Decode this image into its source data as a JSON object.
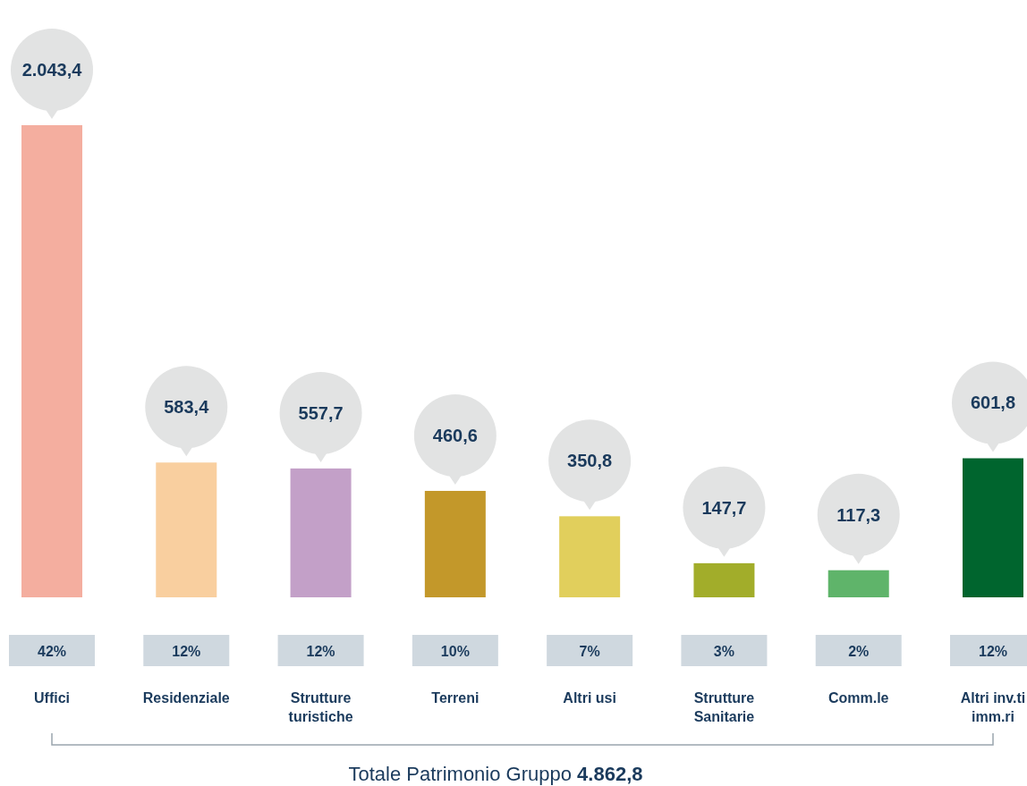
{
  "chart_data": {
    "type": "bar",
    "categories": [
      "Uffici",
      "Residenziale",
      "Strutture turistiche",
      "Terreni",
      "Altri usi",
      "Strutture Sanitarie",
      "Comm.le",
      "Altri inv.ti imm.ri"
    ],
    "values": [
      2043.4,
      583.4,
      557.7,
      460.6,
      350.8,
      147.7,
      117.3,
      601.8
    ],
    "value_labels": [
      "2.043,4",
      "583,4",
      "557,7",
      "460,6",
      "350,8",
      "147,7",
      "117,3",
      "601,8"
    ],
    "colors": [
      "#f4ae9f",
      "#f9cf9f",
      "#c3a0c8",
      "#c3982a",
      "#e1cf5c",
      "#a2ad2a",
      "#5fb46a",
      "#00652e"
    ],
    "annotations": [
      "42%",
      "12%",
      "12%",
      "10%",
      "7%",
      "3%",
      "2%",
      "12%",
      "Totale Patrimonio Gruppo 4.862,8"
    ]
  }
}
